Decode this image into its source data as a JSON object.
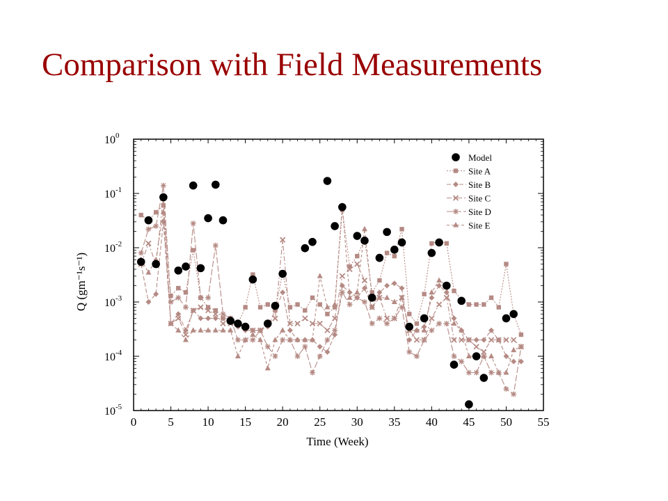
{
  "slide": {
    "title": "Comparison with Field Measurements"
  },
  "chart_data": {
    "type": "scatter",
    "xlabel": "Time (Week)",
    "ylabel": "Q (gm⁻¹s⁻¹)",
    "xlim": [
      0,
      55
    ],
    "ylim": [
      1e-05,
      1
    ],
    "y_scale": "log",
    "x_ticks": [
      0,
      5,
      10,
      15,
      20,
      25,
      30,
      35,
      40,
      45,
      50,
      55
    ],
    "x_tick_labels": [
      "0",
      "5",
      "10",
      "15",
      "20",
      "25",
      "30",
      "35",
      "40",
      "45",
      "50",
      "55"
    ],
    "y_ticks": [
      1e-05,
      0.0001,
      0.001,
      0.01,
      0.1,
      1
    ],
    "y_tick_labels": [
      {
        "base": "10",
        "exp": "-5"
      },
      {
        "base": "10",
        "exp": "-4"
      },
      {
        "base": "10",
        "exp": "-3"
      },
      {
        "base": "10",
        "exp": "-2"
      },
      {
        "base": "10",
        "exp": "-1"
      },
      {
        "base": "10",
        "exp": "0"
      }
    ],
    "legend_position": "top-right",
    "colors": {
      "model": "#000000",
      "sites": "#b58a84",
      "title": "#990000"
    },
    "series": [
      {
        "name": "Model",
        "marker": "circle",
        "line": "none",
        "x": [
          1,
          2,
          3,
          4,
          6,
          7,
          8,
          9,
          10,
          11,
          12,
          13,
          14,
          15,
          16,
          18,
          19,
          20,
          23,
          24,
          26,
          27,
          28,
          30,
          31,
          32,
          33,
          34,
          35,
          36,
          37,
          39,
          40,
          41,
          42,
          43,
          44,
          45,
          46,
          47,
          50,
          51
        ],
        "y": [
          0.0055,
          0.032,
          0.005,
          0.085,
          0.0038,
          0.0045,
          0.14,
          0.0042,
          0.035,
          0.145,
          0.032,
          0.00045,
          0.0004,
          0.00035,
          0.0026,
          0.0004,
          0.00085,
          0.0033,
          0.0098,
          0.0128,
          0.17,
          0.025,
          0.056,
          0.0165,
          0.0135,
          0.0012,
          0.0065,
          0.0195,
          0.0092,
          0.0125,
          0.00035,
          0.0005,
          0.008,
          0.0125,
          0.002,
          7e-05,
          0.00105,
          1.3e-05,
          0.0001,
          4e-05,
          0.0005,
          0.0006
        ]
      },
      {
        "name": "Site A",
        "marker": "square",
        "line": "dotted",
        "x": [
          1,
          2,
          3,
          4,
          5,
          6,
          7,
          8,
          9,
          10,
          11,
          12,
          13,
          14,
          15,
          16,
          17,
          18,
          19,
          20,
          21,
          22,
          23,
          24,
          25,
          26,
          27,
          28,
          29,
          30,
          31,
          32,
          33,
          34,
          35,
          36,
          37,
          38,
          39,
          40,
          41,
          42,
          43,
          44,
          45,
          46,
          47,
          48,
          49,
          50,
          51,
          52
        ],
        "y": [
          0.04,
          0.032,
          0.045,
          0.06,
          0.0013,
          0.0018,
          0.0015,
          0.009,
          0.0012,
          0.0008,
          0.0007,
          0.0005,
          0.0005,
          0.0004,
          0.0008,
          0.0032,
          0.0008,
          0.0009,
          0.0007,
          0.0035,
          0.0008,
          0.0009,
          0.0007,
          0.0012,
          0.0009,
          0.0006,
          0.0008,
          0.05,
          0.0045,
          0.007,
          0.014,
          0.0015,
          0.0025,
          0.008,
          0.007,
          0.022,
          0.0006,
          0.0004,
          0.0014,
          0.012,
          0.013,
          0.012,
          0.0016,
          0.0011,
          0.0009,
          0.0009,
          0.0009,
          0.0012,
          0.0008,
          0.005,
          0.0006,
          0.00025
        ]
      },
      {
        "name": "Site B",
        "marker": "diamond",
        "line": "dashed",
        "x": [
          1,
          2,
          3,
          4,
          5,
          6,
          7,
          8,
          9,
          10,
          11,
          12,
          13,
          14,
          15,
          16,
          17,
          18,
          19,
          20,
          21,
          22,
          23,
          24,
          25,
          26,
          27,
          28,
          29,
          30,
          31,
          32,
          33,
          34,
          35,
          36,
          37,
          38,
          39,
          40,
          41,
          42,
          43,
          44,
          45,
          46,
          47,
          48,
          49,
          50,
          51,
          52
        ],
        "y": [
          0.005,
          0.001,
          0.0014,
          0.03,
          0.0004,
          0.0006,
          0.0003,
          0.0007,
          0.0005,
          0.0005,
          0.0005,
          0.0005,
          0.0005,
          0.00035,
          0.0003,
          0.0003,
          0.0003,
          0.00035,
          0.0007,
          0.0015,
          0.0003,
          0.0002,
          0.0002,
          0.0002,
          0.00015,
          0.00012,
          0.00025,
          0.002,
          0.0015,
          0.0012,
          0.0018,
          0.0008,
          0.0015,
          0.002,
          0.0022,
          0.0018,
          0.0002,
          0.0003,
          0.00035,
          0.0012,
          0.002,
          0.0015,
          0.0005,
          0.0003,
          0.0002,
          0.0002,
          0.0002,
          0.0003,
          0.0002,
          0.0001,
          8e-05,
          8e-05
        ]
      },
      {
        "name": "Site C",
        "marker": "x",
        "line": "dash-dot",
        "x": [
          1,
          2,
          3,
          4,
          5,
          6,
          7,
          8,
          9,
          10,
          11,
          12,
          13,
          14,
          15,
          16,
          17,
          18,
          19,
          20,
          21,
          22,
          23,
          24,
          25,
          26,
          27,
          28,
          29,
          30,
          31,
          32,
          33,
          34,
          35,
          36,
          37,
          38,
          39,
          40,
          41,
          42,
          43,
          44,
          45,
          46,
          47,
          48,
          49,
          50,
          51,
          52
        ],
        "y": [
          0.005,
          0.012,
          0.005,
          0.085,
          0.0004,
          0.0005,
          0.00025,
          0.0007,
          0.0008,
          0.0007,
          0.0006,
          0.0004,
          0.0004,
          0.0004,
          0.00035,
          0.0003,
          0.0003,
          0.0004,
          0.0005,
          0.014,
          0.0004,
          0.0004,
          0.0005,
          0.0004,
          0.0004,
          0.0003,
          0.0005,
          0.003,
          0.004,
          0.005,
          0.0025,
          0.0008,
          0.0012,
          0.0005,
          0.0005,
          0.0012,
          0.0003,
          0.0002,
          0.0002,
          0.0005,
          0.0009,
          0.0012,
          0.0002,
          0.0002,
          0.0002,
          0.00015,
          0.00012,
          0.0002,
          0.0002,
          0.0002,
          0.0002,
          0.00015
        ]
      },
      {
        "name": "Site D",
        "marker": "asterisk",
        "line": "long-dash",
        "x": [
          1,
          2,
          3,
          4,
          5,
          6,
          7,
          8,
          9,
          10,
          11,
          12,
          13,
          14,
          15,
          16,
          17,
          18,
          19,
          20,
          21,
          22,
          23,
          24,
          25,
          26,
          27,
          28,
          29,
          30,
          31,
          32,
          33,
          34,
          35,
          36,
          37,
          38,
          39,
          40,
          41,
          42,
          43,
          44,
          45,
          46,
          47,
          48,
          49,
          50,
          51,
          52
        ],
        "y": [
          0.008,
          0.022,
          0.025,
          0.14,
          0.001,
          0.0012,
          0.0008,
          0.028,
          0.0012,
          0.0012,
          0.011,
          0.0006,
          0.0005,
          0.0002,
          0.0002,
          0.0002,
          0.0003,
          0.00015,
          0.0001,
          0.0002,
          0.0002,
          0.0001,
          0.00015,
          5e-05,
          0.0001,
          0.0002,
          0.0003,
          0.0015,
          0.0009,
          0.0012,
          0.001,
          0.0004,
          0.0005,
          0.0004,
          0.0005,
          0.0008,
          0.00012,
          0.0001,
          0.0002,
          0.0003,
          0.0004,
          0.0004,
          0.0001,
          8e-05,
          5e-05,
          5e-05,
          0.0001,
          5e-05,
          5e-05,
          2.5e-05,
          2e-05,
          0.00015
        ]
      },
      {
        "name": "Site E",
        "marker": "triangle",
        "line": "short-dash",
        "x": [
          1,
          2,
          3,
          4,
          5,
          6,
          7,
          8,
          9,
          10,
          11,
          12,
          13,
          14,
          15,
          16,
          17,
          18,
          19,
          20,
          21,
          22,
          23,
          24,
          25,
          26,
          27,
          28,
          29,
          30,
          31,
          32,
          33,
          34,
          35,
          36,
          37,
          38,
          39,
          40,
          41,
          42,
          43,
          44,
          45,
          46,
          47,
          48,
          49,
          50,
          51,
          52
        ],
        "y": [
          0.006,
          0.0035,
          0.006,
          0.045,
          0.0004,
          0.0003,
          0.0002,
          0.0003,
          0.0003,
          0.0003,
          0.0003,
          0.0003,
          0.0003,
          0.0001,
          0.0002,
          0.00025,
          0.0002,
          6e-05,
          0.0002,
          0.0003,
          0.0002,
          0.0002,
          0.0002,
          0.0002,
          0.003,
          0.0008,
          0.0009,
          0.06,
          0.0012,
          0.0015,
          0.022,
          0.0012,
          0.0012,
          0.0012,
          0.001,
          0.0012,
          0.0003,
          0.0003,
          0.0003,
          0.0015,
          0.0025,
          0.002,
          0.0004,
          0.0003,
          0.0001,
          0.0001,
          0.0001,
          0.0001,
          5e-05,
          5e-05,
          0.00013,
          0.00015
        ]
      }
    ]
  }
}
